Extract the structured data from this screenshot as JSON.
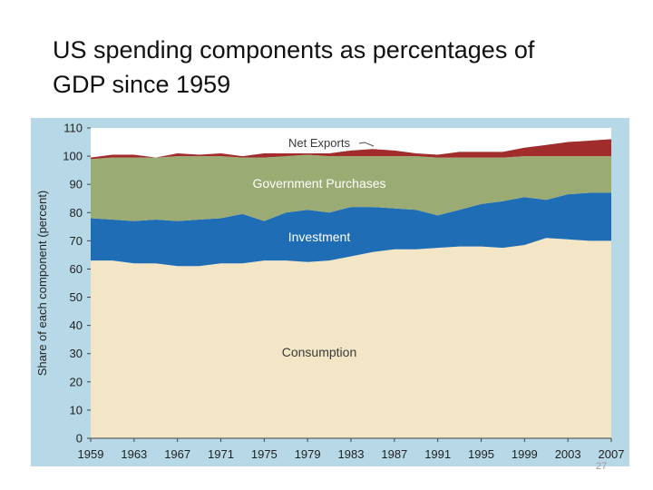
{
  "slide": {
    "title_line1": "US spending components as percentages of",
    "title_line2": "GDP since 1959",
    "page_number": "27"
  },
  "chart_data": {
    "type": "area",
    "stacked": true,
    "title": "US spending components as percentages of GDP since 1959",
    "xlabel": "",
    "ylabel": "Share of each component (percent)",
    "xlim": [
      1959,
      2007
    ],
    "ylim": [
      0,
      110
    ],
    "x_ticks": [
      1959,
      1963,
      1967,
      1971,
      1975,
      1979,
      1983,
      1987,
      1991,
      1995,
      1999,
      2003,
      2007
    ],
    "y_ticks": [
      0,
      10,
      20,
      30,
      40,
      50,
      60,
      70,
      80,
      90,
      100,
      110
    ],
    "x": [
      1959,
      1961,
      1963,
      1965,
      1967,
      1969,
      1971,
      1973,
      1975,
      1977,
      1979,
      1981,
      1983,
      1985,
      1987,
      1989,
      1991,
      1993,
      1995,
      1997,
      1999,
      2001,
      2003,
      2005,
      2007
    ],
    "cumulative_tops": {
      "Consumption": [
        63,
        63,
        62,
        62,
        61,
        61,
        62,
        62,
        63,
        63,
        62.5,
        63,
        64.5,
        66,
        67,
        67,
        67.5,
        68,
        68,
        67.5,
        68.5,
        71,
        70.5,
        70,
        70
      ],
      "Investment": [
        78,
        77.5,
        77,
        77.5,
        77,
        77.5,
        78,
        79.5,
        77,
        80,
        81,
        80,
        82,
        82,
        81.5,
        81,
        79,
        81,
        83,
        84,
        85.5,
        84.5,
        86.5,
        87,
        87
      ],
      "Government Purchases": [
        99,
        99.5,
        99.5,
        99.5,
        100,
        100,
        100,
        99.5,
        99.5,
        100,
        100.5,
        100,
        100,
        100,
        100,
        100,
        99.5,
        99.5,
        99.5,
        99.5,
        100,
        100,
        100,
        100,
        100
      ],
      "Net Exports": [
        99.5,
        100.5,
        100.5,
        99.5,
        101,
        100.5,
        101,
        100,
        101,
        101,
        101,
        101,
        102,
        102.5,
        102,
        101,
        100.5,
        101.5,
        101.5,
        101.5,
        103,
        104,
        105,
        105.5,
        106
      ]
    },
    "series": [
      {
        "name": "Consumption",
        "label": "Consumption",
        "color": "#f2e6c6"
      },
      {
        "name": "Investment",
        "label": "Investment",
        "color": "#1f6db5"
      },
      {
        "name": "Government Purchases",
        "label": "Government Purchases",
        "color": "#9aab73"
      },
      {
        "name": "Net Exports",
        "label": "Net Exports",
        "color": "#a02c2c"
      }
    ],
    "colors": {
      "panel_background": "#b6d8e7",
      "axis_text": "#222222",
      "label_dark": "#3a3a3a",
      "label_light": "#ffffff"
    }
  }
}
